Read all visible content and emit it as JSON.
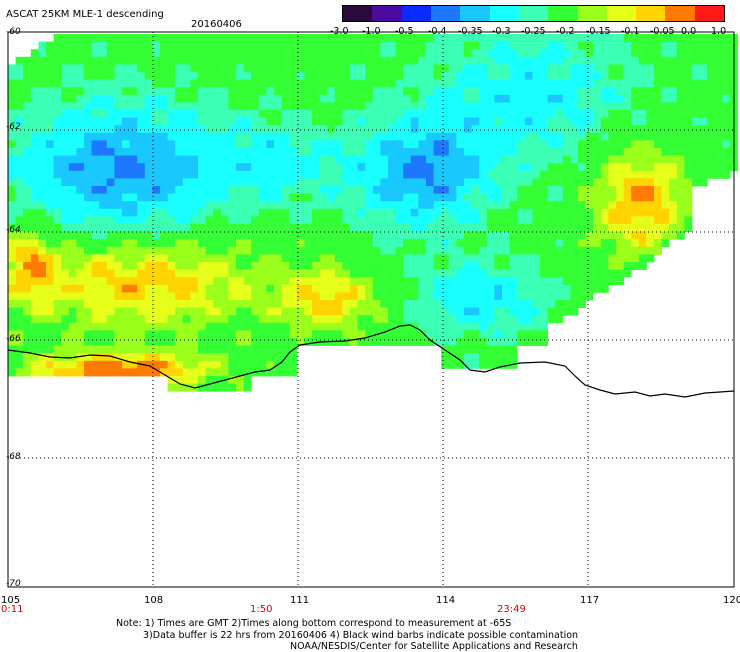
{
  "header": {
    "title": "ASCAT 25KM MLE-1 descending",
    "date": "20160406"
  },
  "colorbar": {
    "ticks": [
      "-3.0",
      "-1.0",
      "-0.5",
      "-0.4",
      "-0.35",
      "-0.3",
      "-0.25",
      "-0.2",
      "-0.15",
      "-0.1",
      "-0.05",
      "0.0",
      "1.0"
    ],
    "colors": [
      "#2a0a3a",
      "#4b0aa0",
      "#0a2aff",
      "#1e78ff",
      "#19c8ff",
      "#19ffff",
      "#3affb4",
      "#34ff34",
      "#9aff1a",
      "#e6ff1a",
      "#ffd400",
      "#ff7a00",
      "#ff1a1a"
    ]
  },
  "axes": {
    "latitudes": [
      "-60",
      "-62",
      "-64",
      "-66",
      "-68",
      "-70"
    ],
    "longitudes": [
      "105",
      "108",
      "111",
      "114",
      "117",
      "120"
    ]
  },
  "times": {
    "start": "0:11",
    "mid": "1:50",
    "end": "23:49"
  },
  "notes": {
    "line1": "Note: 1) Times are GMT 2)Times along bottom correspond to measurement at -65S",
    "line2": "3)Data buffer is 22 hrs from 20160406 4) Black wind barbs indicate possible contamination",
    "line3": "NOAA/NESDIS/Center for Satellite Applications and Research"
  }
}
